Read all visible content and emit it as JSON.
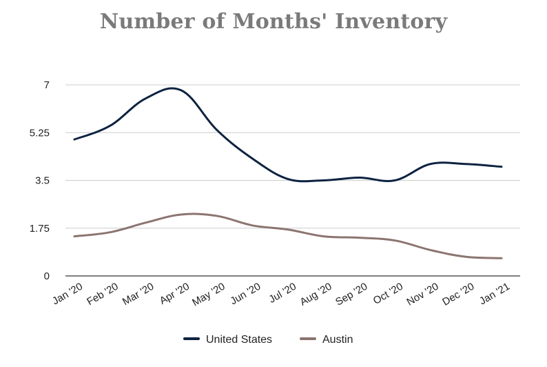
{
  "chart_data": {
    "type": "line",
    "title": "Number of Months' Inventory",
    "xlabel": "",
    "ylabel": "",
    "ylim": [
      0,
      7
    ],
    "yticks": [
      0,
      1.75,
      3.5,
      5.25,
      7
    ],
    "ytick_labels": [
      "0",
      "1.75",
      "3.5",
      "5.25",
      "7"
    ],
    "categories": [
      "Jan '20",
      "Feb '20",
      "Mar '20",
      "Apr '20",
      "May '20",
      "Jun '20",
      "Jul '20",
      "Aug '20",
      "Sep '20",
      "Oct '20",
      "Nov '20",
      "Dec '20",
      "Jan '21"
    ],
    "grid": true,
    "legend_position": "bottom",
    "series": [
      {
        "name": "United States",
        "color": "#0d2240",
        "values": [
          5.0,
          5.5,
          6.5,
          6.8,
          5.35,
          4.3,
          3.55,
          3.5,
          3.6,
          3.5,
          4.1,
          4.1,
          4.0
        ]
      },
      {
        "name": "Austin",
        "color": "#8b7470",
        "values": [
          1.45,
          1.6,
          1.95,
          2.25,
          2.2,
          1.85,
          1.7,
          1.45,
          1.4,
          1.3,
          0.95,
          0.7,
          0.65
        ]
      }
    ]
  }
}
